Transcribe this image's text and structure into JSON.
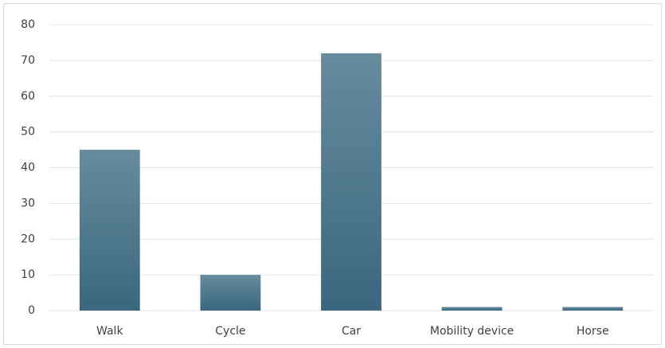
{
  "chart_data": {
    "type": "bar",
    "categories": [
      "Walk",
      "Cycle",
      "Car",
      "Mobility device",
      "Horse"
    ],
    "values": [
      45,
      10,
      72,
      1,
      1
    ],
    "color": [
      "#668c9d",
      "#3a677e"
    ],
    "ylim": [
      0,
      80
    ],
    "yticks": [
      0,
      10,
      20,
      30,
      40,
      50,
      60,
      70,
      80
    ],
    "grid": true
  }
}
